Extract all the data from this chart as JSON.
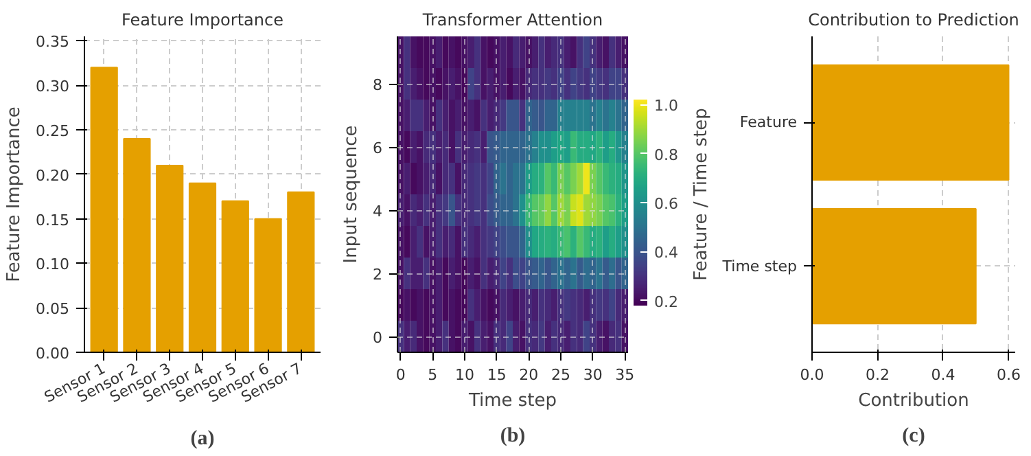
{
  "chart_data": [
    {
      "type": "bar",
      "title": "Feature Importance",
      "ylabel": "Feature Importance",
      "annotations": [
        "(a)"
      ],
      "categories": [
        "Sensor 1",
        "Sensor 2",
        "Sensor 3",
        "Sensor 4",
        "Sensor 5",
        "Sensor 6",
        "Sensor 7"
      ],
      "values": [
        0.32,
        0.24,
        0.21,
        0.19,
        0.17,
        0.15,
        0.18
      ],
      "color": "#e5a000",
      "ylim": [
        0,
        0.355
      ],
      "yticks": [
        {
          "value": 0,
          "label": "0.00"
        },
        {
          "value": 0.05,
          "label": "0.05"
        },
        {
          "value": 0.1,
          "label": "0.10"
        },
        {
          "value": 0.15,
          "label": "0.15"
        },
        {
          "value": 0.2,
          "label": "0.20"
        },
        {
          "value": 0.25,
          "label": "0.25"
        },
        {
          "value": 0.3,
          "label": "0.30"
        },
        {
          "value": 0.35,
          "label": "0.35"
        }
      ],
      "grid": true
    },
    {
      "type": "heatmap",
      "title": "Transformer Attention",
      "xlabel": "Time step",
      "ylabel": "Input sequence",
      "annotations": [
        "(b)"
      ],
      "x": [
        0,
        1,
        2,
        3,
        4,
        5,
        6,
        7,
        8,
        9,
        10,
        11,
        12,
        13,
        14,
        15,
        16,
        17,
        18,
        19,
        20,
        21,
        22,
        23,
        24,
        25,
        26,
        27,
        28,
        29,
        30,
        31,
        32,
        33,
        34,
        35
      ],
      "y": [
        9,
        8,
        7,
        6,
        5,
        4,
        3,
        2,
        1,
        0
      ],
      "xlim": [
        -0.5,
        35.5
      ],
      "ylim": [
        -0.5,
        9.5
      ],
      "xticks": [
        0,
        5,
        10,
        15,
        20,
        25,
        30,
        35
      ],
      "yticks": [
        0,
        2,
        4,
        6,
        8
      ],
      "clim": [
        0.18,
        1.02
      ],
      "cticks": [
        {
          "value": 0.2,
          "label": "0.2"
        },
        {
          "value": 0.4,
          "label": "0.4"
        },
        {
          "value": 0.6,
          "label": "0.6"
        },
        {
          "value": 0.8,
          "label": "0.8"
        },
        {
          "value": 1.0,
          "label": "1.0"
        }
      ],
      "grid": true,
      "cells": [
        [
          0.22,
          0.3,
          0.22,
          0.2,
          0.2,
          0.22,
          0.25,
          0.2,
          0.22,
          0.2,
          0.22,
          0.25,
          0.3,
          0.22,
          0.2,
          0.22,
          0.25,
          0.22,
          0.28,
          0.25,
          0.22,
          0.25,
          0.3,
          0.25,
          0.28,
          0.3,
          0.25,
          0.22,
          0.3,
          0.35,
          0.3,
          0.25,
          0.22,
          0.3,
          0.25,
          0.22
        ],
        [
          0.22,
          0.3,
          0.25,
          0.22,
          0.2,
          0.22,
          0.2,
          0.22,
          0.25,
          0.22,
          0.2,
          0.35,
          0.3,
          0.22,
          0.25,
          0.22,
          0.25,
          0.2,
          0.25,
          0.22,
          0.28,
          0.3,
          0.3,
          0.32,
          0.3,
          0.35,
          0.3,
          0.35,
          0.32,
          0.3,
          0.35,
          0.32,
          0.3,
          0.35,
          0.35,
          0.3
        ],
        [
          0.22,
          0.25,
          0.3,
          0.3,
          0.25,
          0.22,
          0.3,
          0.25,
          0.22,
          0.25,
          0.22,
          0.25,
          0.22,
          0.3,
          0.25,
          0.28,
          0.32,
          0.4,
          0.4,
          0.3,
          0.45,
          0.42,
          0.4,
          0.45,
          0.45,
          0.55,
          0.55,
          0.55,
          0.55,
          0.55,
          0.5,
          0.55,
          0.5,
          0.55,
          0.5,
          0.45
        ],
        [
          0.22,
          0.2,
          0.25,
          0.22,
          0.28,
          0.3,
          0.25,
          0.28,
          0.22,
          0.3,
          0.25,
          0.28,
          0.3,
          0.25,
          0.4,
          0.42,
          0.45,
          0.45,
          0.45,
          0.45,
          0.5,
          0.55,
          0.6,
          0.6,
          0.65,
          0.68,
          0.65,
          0.75,
          0.7,
          0.7,
          0.68,
          0.72,
          0.65,
          0.7,
          0.62,
          0.55
        ],
        [
          0.22,
          0.25,
          0.2,
          0.22,
          0.25,
          0.28,
          0.22,
          0.28,
          0.3,
          0.22,
          0.28,
          0.3,
          0.32,
          0.3,
          0.35,
          0.45,
          0.5,
          0.45,
          0.5,
          0.5,
          0.65,
          0.7,
          0.72,
          0.8,
          0.75,
          0.85,
          0.8,
          0.85,
          0.9,
          1.0,
          0.85,
          0.8,
          0.75,
          0.72,
          0.7,
          0.62
        ],
        [
          0.25,
          0.22,
          0.28,
          0.25,
          0.3,
          0.25,
          0.3,
          0.32,
          0.4,
          0.3,
          0.28,
          0.3,
          0.32,
          0.3,
          0.38,
          0.42,
          0.45,
          0.45,
          0.5,
          0.6,
          0.75,
          0.8,
          0.82,
          0.88,
          0.8,
          0.9,
          0.85,
          0.95,
          0.98,
          0.9,
          0.88,
          0.85,
          0.8,
          0.78,
          0.72,
          0.65
        ],
        [
          0.22,
          0.2,
          0.25,
          0.3,
          0.22,
          0.25,
          0.3,
          0.25,
          0.28,
          0.22,
          0.3,
          0.28,
          0.25,
          0.3,
          0.32,
          0.35,
          0.38,
          0.4,
          0.4,
          0.45,
          0.6,
          0.68,
          0.7,
          0.72,
          0.7,
          0.75,
          0.78,
          0.72,
          0.8,
          0.75,
          0.7,
          0.72,
          0.65,
          0.7,
          0.65,
          0.6
        ],
        [
          0.22,
          0.3,
          0.25,
          0.25,
          0.3,
          0.22,
          0.25,
          0.2,
          0.25,
          0.22,
          0.2,
          0.25,
          0.22,
          0.3,
          0.25,
          0.28,
          0.35,
          0.3,
          0.38,
          0.35,
          0.4,
          0.42,
          0.45,
          0.4,
          0.45,
          0.5,
          0.45,
          0.5,
          0.42,
          0.48,
          0.45,
          0.5,
          0.42,
          0.48,
          0.4,
          0.45
        ],
        [
          0.2,
          0.22,
          0.2,
          0.22,
          0.2,
          0.22,
          0.25,
          0.2,
          0.22,
          0.2,
          0.2,
          0.3,
          0.25,
          0.22,
          0.2,
          0.22,
          0.28,
          0.25,
          0.22,
          0.25,
          0.28,
          0.25,
          0.3,
          0.28,
          0.25,
          0.3,
          0.32,
          0.3,
          0.28,
          0.25,
          0.3,
          0.32,
          0.3,
          0.35,
          0.28,
          0.25
        ],
        [
          0.3,
          0.25,
          0.28,
          0.22,
          0.2,
          0.22,
          0.25,
          0.3,
          0.22,
          0.2,
          0.25,
          0.22,
          0.3,
          0.25,
          0.22,
          0.3,
          0.28,
          0.35,
          0.25,
          0.22,
          0.3,
          0.28,
          0.32,
          0.25,
          0.3,
          0.28,
          0.25,
          0.3,
          0.28,
          0.35,
          0.3,
          0.25,
          0.22,
          0.28,
          0.3,
          0.22
        ]
      ]
    },
    {
      "type": "bar",
      "orientation": "horizontal",
      "title": "Contribution to Prediction",
      "xlabel": "Contribution",
      "ylabel": "Feature / Time step",
      "annotations": [
        "(c)"
      ],
      "categories": [
        "Feature",
        "Time step"
      ],
      "values": [
        0.6,
        0.5
      ],
      "color": "#e5a000",
      "xlim": [
        0,
        0.62
      ],
      "xticks": [
        {
          "value": 0,
          "label": "0.0"
        },
        {
          "value": 0.2,
          "label": "0.2"
        },
        {
          "value": 0.4,
          "label": "0.4"
        },
        {
          "value": 0.6,
          "label": "0.6"
        }
      ],
      "grid": true
    }
  ]
}
